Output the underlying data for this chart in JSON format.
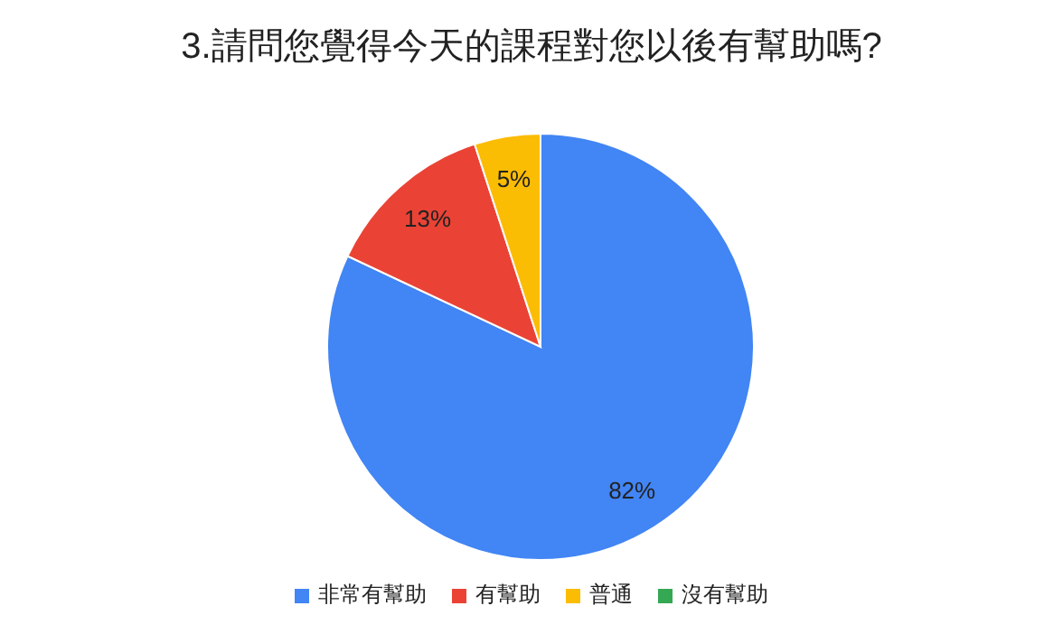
{
  "chart_data": {
    "type": "pie",
    "title": "3.請問您覺得今天的課程對您以後有幫助嗎?",
    "categories": [
      "非常有幫助",
      "有幫助",
      "普通",
      "沒有幫助"
    ],
    "values": [
      82,
      13,
      5,
      0
    ],
    "colors": [
      "#4285f4",
      "#ea4335",
      "#fbbc04",
      "#34a853"
    ],
    "value_labels": [
      "82%",
      "13%",
      "5%",
      null
    ],
    "legend": "bottom"
  }
}
